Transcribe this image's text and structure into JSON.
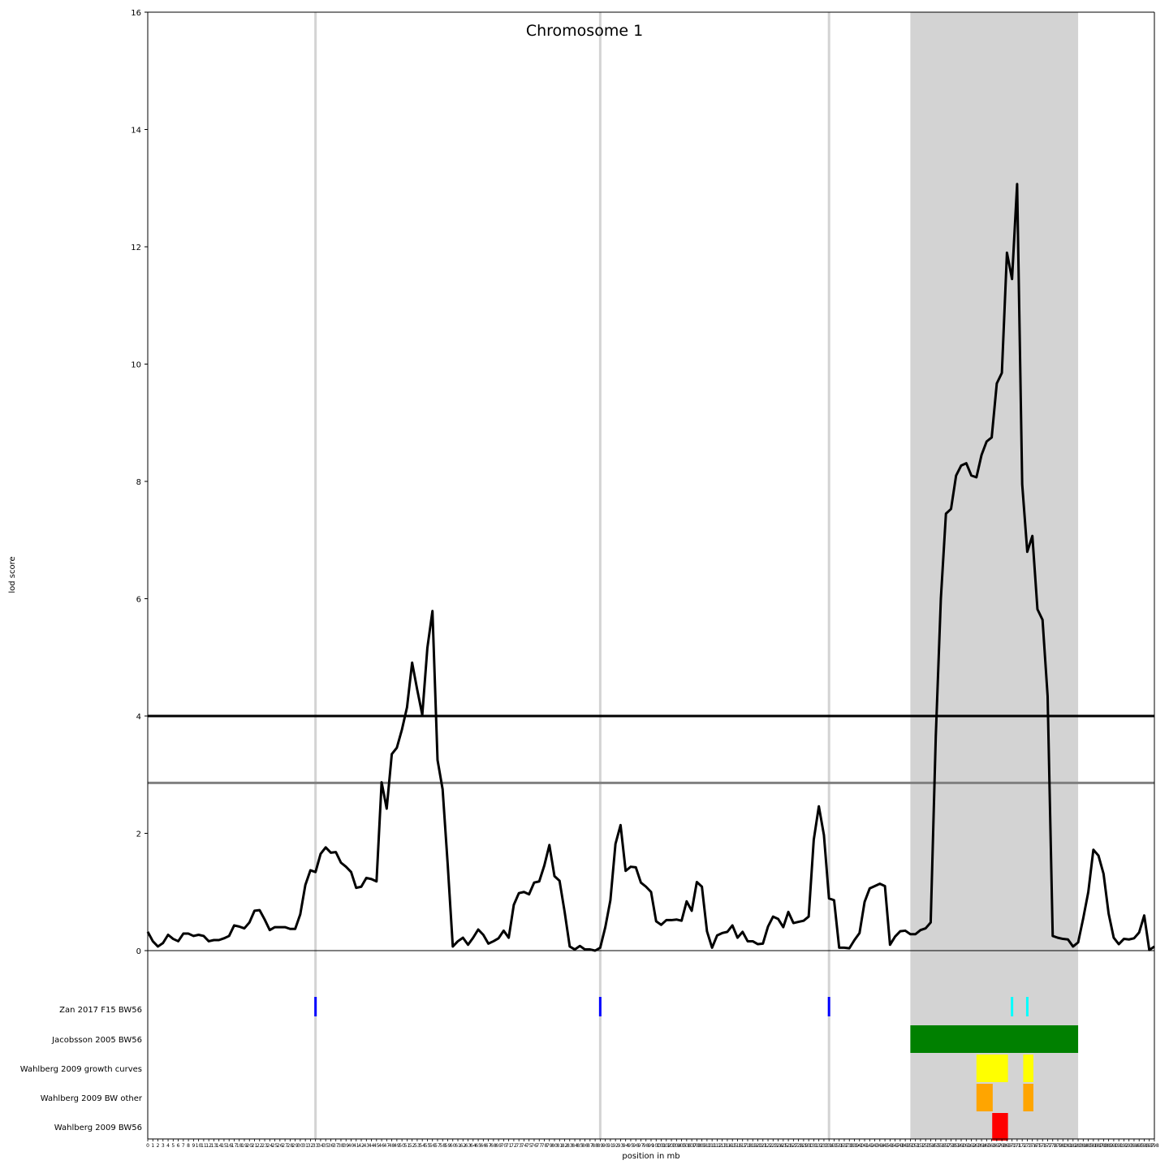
{
  "chart_data": {
    "type": "line",
    "title": "Chromosome 1",
    "xlabel": "position in mb",
    "ylabel": "lod score",
    "ylim": [
      0,
      16
    ],
    "xlim": [
      0,
      198
    ],
    "yticks": [
      0,
      2,
      4,
      6,
      8,
      10,
      12,
      14,
      16
    ],
    "xtick_step": 1,
    "grid": false,
    "thresholds": [
      {
        "value": 4.0,
        "color": "#000000"
      },
      {
        "value": 2.86,
        "color": "#808080"
      }
    ],
    "highlight_region": {
      "start": 150,
      "end": 183,
      "color": "#d3d3d3"
    },
    "vertical_markers": [
      {
        "x": 33,
        "color": "#d3d3d3"
      },
      {
        "x": 89,
        "color": "#d3d3d3"
      },
      {
        "x": 134,
        "color": "#d3d3d3"
      }
    ],
    "series": [
      {
        "color": "#000000",
        "x": [
          0,
          1,
          2,
          3,
          4,
          5,
          6,
          7,
          8,
          9,
          10,
          11,
          12,
          13,
          14,
          15,
          16,
          17,
          18,
          19,
          20,
          21,
          22,
          23,
          24,
          25,
          26,
          27,
          28,
          29,
          30,
          31,
          32,
          33,
          34,
          35,
          36,
          37,
          38,
          39,
          40,
          41,
          42,
          43,
          44,
          45,
          46,
          47,
          48,
          49,
          50,
          51,
          52,
          53,
          54,
          55,
          56,
          57,
          58,
          59,
          60,
          61,
          62,
          63,
          64,
          65,
          66,
          67,
          68,
          69,
          70,
          71,
          72,
          73,
          74,
          75,
          76,
          77,
          78,
          79,
          80,
          81,
          82,
          83,
          84,
          85,
          86,
          87,
          88,
          89,
          90,
          91,
          92,
          93,
          94,
          95,
          96,
          97,
          98,
          99,
          100,
          101,
          102,
          103,
          104,
          105,
          106,
          107,
          108,
          109,
          110,
          111,
          112,
          113,
          114,
          115,
          116,
          117,
          118,
          119,
          120,
          121,
          122,
          123,
          124,
          125,
          126,
          127,
          128,
          129,
          130,
          131,
          132,
          133,
          134,
          135,
          136,
          137,
          138,
          139,
          140,
          141,
          142,
          143,
          144,
          145,
          146,
          147,
          148,
          149,
          150,
          151,
          152,
          153,
          154,
          155,
          156,
          157,
          158,
          159,
          160,
          161,
          162,
          163,
          164,
          165,
          166,
          167,
          168,
          169,
          170,
          171,
          172,
          173,
          174,
          175,
          176,
          177,
          178,
          179,
          180,
          181,
          182,
          183,
          184,
          185,
          186,
          187,
          188,
          189,
          190,
          191,
          192,
          193,
          194,
          195,
          196,
          197,
          198
        ],
        "y": [
          0.32,
          0.16,
          0.07,
          0.13,
          0.27,
          0.2,
          0.16,
          0.29,
          0.29,
          0.25,
          0.27,
          0.25,
          0.16,
          0.18,
          0.18,
          0.21,
          0.25,
          0.43,
          0.41,
          0.38,
          0.48,
          0.68,
          0.69,
          0.53,
          0.35,
          0.4,
          0.4,
          0.4,
          0.37,
          0.37,
          0.62,
          1.12,
          1.37,
          1.34,
          1.65,
          1.76,
          1.67,
          1.68,
          1.5,
          1.43,
          1.34,
          1.07,
          1.09,
          1.24,
          1.22,
          1.18,
          2.87,
          2.42,
          3.35,
          3.46,
          3.77,
          4.15,
          4.91,
          4.45,
          4.02,
          5.16,
          5.79,
          3.25,
          2.75,
          1.47,
          0.07,
          0.16,
          0.22,
          0.1,
          0.22,
          0.36,
          0.27,
          0.12,
          0.16,
          0.21,
          0.34,
          0.22,
          0.78,
          0.98,
          1.0,
          0.96,
          1.16,
          1.18,
          1.45,
          1.8,
          1.27,
          1.19,
          0.66,
          0.07,
          0.02,
          0.08,
          0.02,
          0.02,
          0.0,
          0.05,
          0.4,
          0.86,
          1.82,
          2.14,
          1.36,
          1.43,
          1.42,
          1.16,
          1.09,
          1.0,
          0.5,
          0.44,
          0.52,
          0.52,
          0.53,
          0.51,
          0.84,
          0.68,
          1.17,
          1.09,
          0.33,
          0.05,
          0.26,
          0.3,
          0.32,
          0.43,
          0.22,
          0.32,
          0.16,
          0.16,
          0.11,
          0.12,
          0.41,
          0.58,
          0.54,
          0.4,
          0.66,
          0.47,
          0.49,
          0.51,
          0.58,
          1.89,
          2.46,
          1.97,
          0.89,
          0.86,
          0.05,
          0.05,
          0.04,
          0.18,
          0.3,
          0.83,
          1.06,
          1.1,
          1.14,
          1.1,
          0.1,
          0.24,
          0.33,
          0.34,
          0.28,
          0.28,
          0.35,
          0.38,
          0.48,
          3.65,
          6.0,
          7.45,
          7.53,
          8.1,
          8.27,
          8.31,
          8.1,
          8.07,
          8.45,
          8.68,
          8.75,
          9.67,
          9.85,
          11.9,
          11.45,
          13.07,
          7.95,
          6.8,
          7.07,
          5.82,
          5.64,
          4.34,
          0.25,
          0.22,
          0.2,
          0.19,
          0.07,
          0.14,
          0.55,
          1.0,
          1.72,
          1.62,
          1.31,
          0.63,
          0.22,
          0.11,
          0.2,
          0.19,
          0.21,
          0.31,
          0.6,
          0.01,
          0.07
        ]
      }
    ]
  },
  "tracks": [
    {
      "label": "Zan 2017 F15 BW56",
      "marks": [
        {
          "type": "line",
          "x": 33,
          "color": "#0000ff"
        },
        {
          "type": "line",
          "x": 89,
          "color": "#0000ff"
        },
        {
          "type": "line",
          "x": 134,
          "color": "#0000ff"
        },
        {
          "type": "line",
          "x": 170,
          "color": "#00ffff"
        },
        {
          "type": "line",
          "x": 173,
          "color": "#00ffff"
        }
      ]
    },
    {
      "label": "Jacobsson 2005 BW56",
      "marks": [
        {
          "type": "bar",
          "start": 150,
          "end": 183,
          "color": "#008000"
        }
      ]
    },
    {
      "label": "Wahlberg 2009 growth curves",
      "marks": [
        {
          "type": "bar",
          "start": 163,
          "end": 169.2,
          "color": "#ffff00"
        },
        {
          "type": "bar",
          "start": 172.2,
          "end": 174.2,
          "color": "#ffff00"
        }
      ]
    },
    {
      "label": "Wahlberg 2009 BW other",
      "marks": [
        {
          "type": "bar",
          "start": 163,
          "end": 166.2,
          "color": "#ffa500"
        },
        {
          "type": "bar",
          "start": 172.2,
          "end": 174.2,
          "color": "#ffa500"
        }
      ]
    },
    {
      "label": "Wahlberg 2009 BW56",
      "marks": [
        {
          "type": "bar",
          "start": 166.1,
          "end": 169.2,
          "color": "#ff0000"
        }
      ]
    }
  ]
}
